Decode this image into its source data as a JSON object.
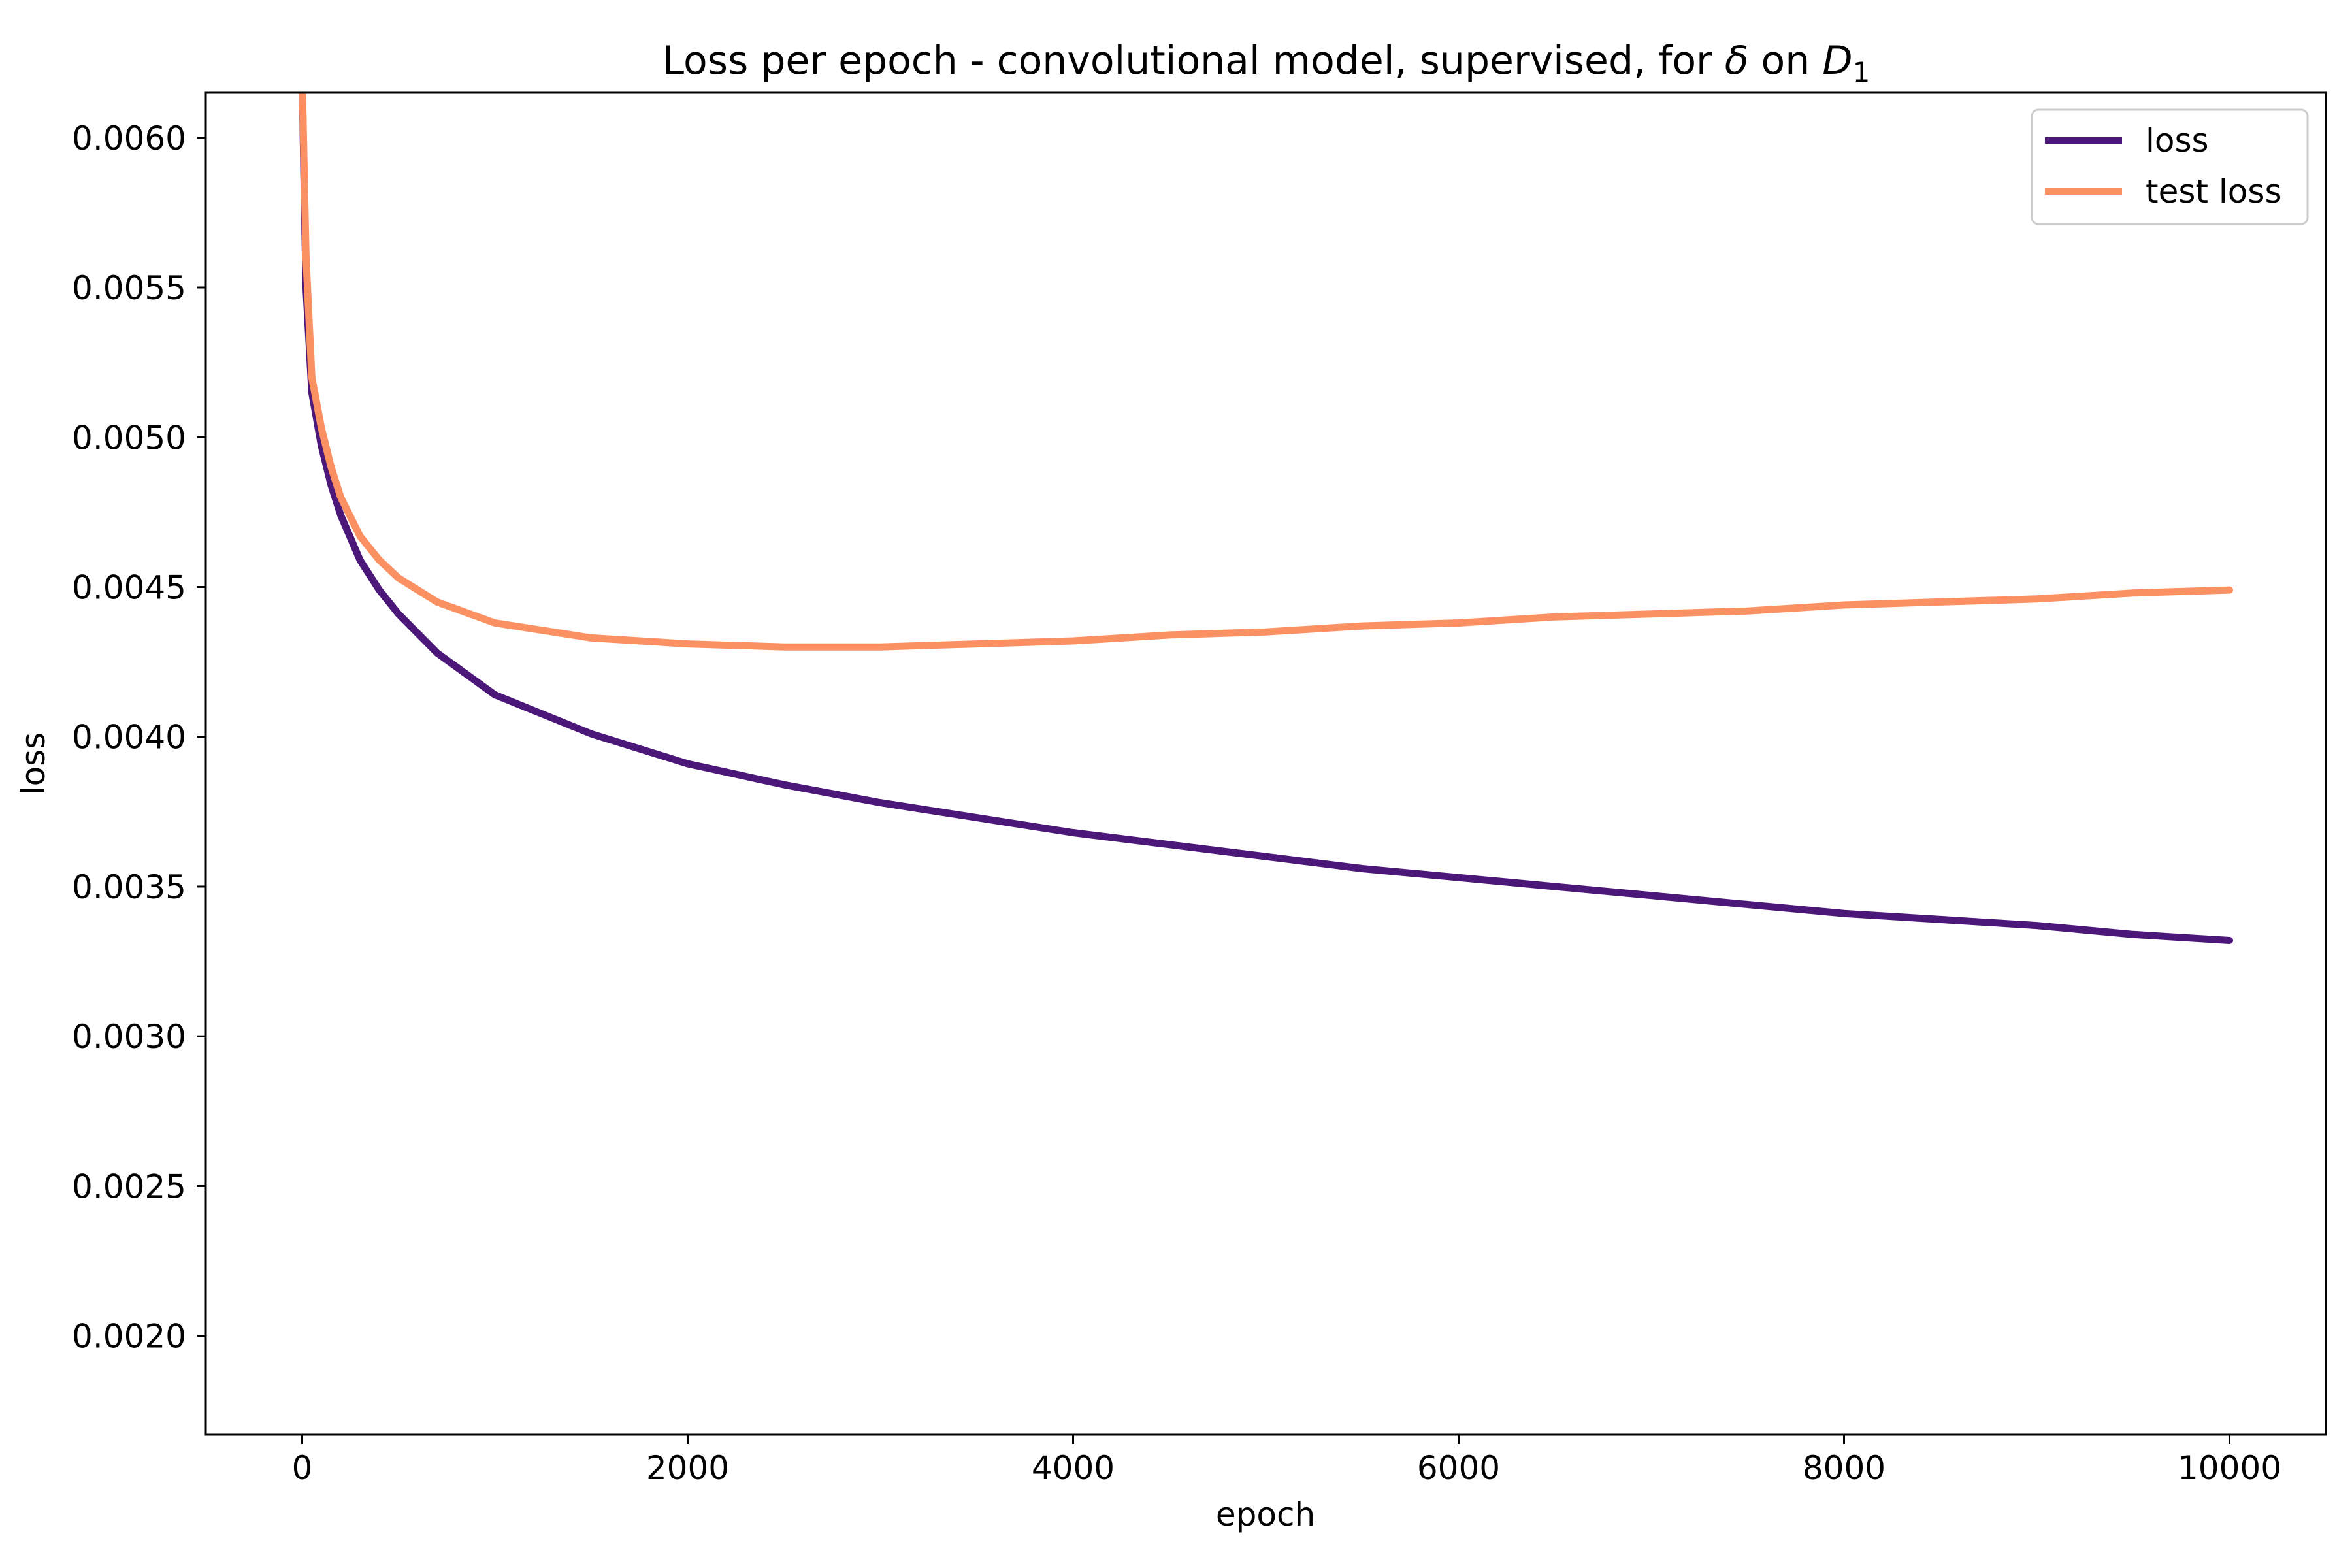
{
  "chart_data": {
    "type": "line",
    "title": "Loss per epoch - convolutional model, supervised, for δ on D₁",
    "title_parts": {
      "prefix": "Loss per epoch - convolutional model, supervised, for ",
      "symbol": "δ",
      "middle": " on ",
      "var": "D",
      "subscript": "1"
    },
    "xlabel": "epoch",
    "ylabel": "loss",
    "xlim": [
      -500,
      10500
    ],
    "ylim": [
      0.00167,
      0.00615
    ],
    "xticks": [
      0,
      2000,
      4000,
      6000,
      8000,
      10000
    ],
    "xtick_labels": [
      "0",
      "2000",
      "4000",
      "6000",
      "8000",
      "10000"
    ],
    "yticks": [
      0.002,
      0.0025,
      0.003,
      0.0035,
      0.004,
      0.0045,
      0.005,
      0.0055,
      0.006
    ],
    "ytick_labels": [
      "0.0020",
      "0.0025",
      "0.0030",
      "0.0035",
      "0.0040",
      "0.0045",
      "0.0050",
      "0.0055",
      "0.0060"
    ],
    "grid": false,
    "legend_position": "top-right",
    "series": [
      {
        "name": "loss",
        "color": "#4b1779",
        "x": [
          0,
          20,
          50,
          100,
          150,
          200,
          300,
          400,
          500,
          700,
          1000,
          1500,
          2000,
          2500,
          3000,
          3500,
          4000,
          4500,
          5000,
          5500,
          6000,
          6500,
          7000,
          7500,
          8000,
          8500,
          9000,
          9500,
          10000
        ],
        "y": [
          0.0062,
          0.0055,
          0.00515,
          0.00497,
          0.00484,
          0.00474,
          0.00459,
          0.00449,
          0.00441,
          0.00428,
          0.00414,
          0.00401,
          0.00391,
          0.00384,
          0.00378,
          0.00373,
          0.00368,
          0.00364,
          0.0036,
          0.00356,
          0.00353,
          0.0035,
          0.00347,
          0.00344,
          0.00341,
          0.00339,
          0.00337,
          0.00334,
          0.00332
        ]
      },
      {
        "name": "test loss",
        "color": "#fb9062",
        "x": [
          0,
          20,
          50,
          100,
          150,
          200,
          300,
          400,
          500,
          700,
          1000,
          1500,
          2000,
          2500,
          3000,
          3500,
          4000,
          4500,
          5000,
          5500,
          6000,
          6500,
          7000,
          7500,
          8000,
          8500,
          9000,
          9500,
          10000
        ],
        "y": [
          0.0062,
          0.0056,
          0.0052,
          0.00503,
          0.0049,
          0.0048,
          0.00467,
          0.00459,
          0.00453,
          0.00445,
          0.00438,
          0.00433,
          0.00431,
          0.0043,
          0.0043,
          0.00431,
          0.00432,
          0.00434,
          0.00435,
          0.00437,
          0.00438,
          0.0044,
          0.00441,
          0.00442,
          0.00444,
          0.00445,
          0.00446,
          0.00448,
          0.00449
        ]
      }
    ]
  }
}
